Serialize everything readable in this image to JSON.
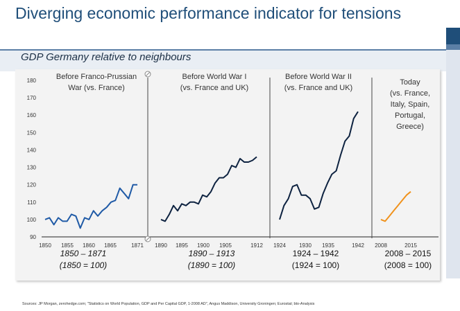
{
  "title": "Diverging economic performance indicator for tensions",
  "subtitle": "GDP Germany relative to neighbours",
  "sources": "Sources: JP Morgan, zerohedge.com; \"Statistics on World Population, GDP and Per Capital GDP, 1-2008 AD\", Angus Maddison, University Groningen; Eurostat; bto-Analysis",
  "colors": {
    "blue": "#1f5aa6",
    "navy": "#0d2240",
    "orange": "#f0921c",
    "title": "#1f4e79"
  },
  "chart_data": {
    "type": "line",
    "ylim": [
      90,
      180
    ],
    "y_ticks": [
      "90",
      "100",
      "110",
      "120",
      "130",
      "140",
      "150",
      "160",
      "170",
      "180"
    ],
    "grid": false,
    "panels": [
      {
        "label": "Before Franco-Prussian War (vs. France)",
        "label_lines": [
          "Before Franco-Prussian",
          "War (vs. France)"
        ],
        "period": "1850 – 1871",
        "base": "(1850 = 100)",
        "x_ticks": [
          "1850",
          "1855",
          "1860",
          "1865",
          "1871"
        ],
        "xlim": [
          1850,
          1871
        ],
        "series": [
          {
            "color": "blue",
            "x": [
              1850,
              1851,
              1852,
              1853,
              1854,
              1855,
              1856,
              1857,
              1858,
              1859,
              1860,
              1861,
              1862,
              1863,
              1864,
              1865,
              1866,
              1867,
              1868,
              1869,
              1870,
              1871
            ],
            "values": [
              100,
              101,
              97,
              101,
              99,
              99,
              103,
              102,
              95,
              101,
              100,
              105,
              102,
              105,
              107,
              110,
              111,
              118,
              115,
              112,
              120,
              120
            ]
          }
        ]
      },
      {
        "label": "Before World War I (vs. France and UK)",
        "label_lines": [
          "Before World War I",
          "(vs. France and UK)"
        ],
        "period": "1890 – 1913",
        "base": "(1890 = 100)",
        "x_ticks": [
          "1890",
          "1895",
          "1900",
          "1905",
          "1912"
        ],
        "xlim": [
          1890,
          1913
        ],
        "series": [
          {
            "color": "navy",
            "x": [
              1890,
              1891,
              1892,
              1893,
              1894,
              1895,
              1896,
              1897,
              1898,
              1899,
              1900,
              1901,
              1902,
              1903,
              1904,
              1905,
              1906,
              1907,
              1908,
              1909,
              1910,
              1911,
              1912,
              1913
            ],
            "values": [
              100,
              99,
              103,
              108,
              105,
              109,
              108,
              110,
              110,
              109,
              114,
              113,
              116,
              121,
              124,
              124,
              126,
              131,
              130,
              135,
              133,
              133,
              134,
              136
            ]
          }
        ]
      },
      {
        "label": "Before World War II (vs. France and UK)",
        "label_lines": [
          "Before World War II",
          "(vs. France and UK)"
        ],
        "period": "1924 – 1942",
        "base": "(1924 = 100)",
        "x_ticks": [
          "1924",
          "1930",
          "1935",
          "1942"
        ],
        "xlim": [
          1924,
          1942
        ],
        "series": [
          {
            "color": "navy",
            "x": [
              1924,
              1925,
              1926,
              1927,
              1928,
              1929,
              1930,
              1931,
              1932,
              1933,
              1934,
              1935,
              1936,
              1937,
              1938,
              1939,
              1940,
              1941,
              1942
            ],
            "values": [
              100,
              108,
              112,
              119,
              120,
              114,
              114,
              112,
              106,
              107,
              115,
              121,
              126,
              128,
              137,
              145,
              148,
              158,
              162
            ]
          }
        ]
      },
      {
        "label": "Today (vs. France, Italy, Spain, Portugal, Greece)",
        "label_lines": [
          "Today",
          "(vs. France,",
          "Italy, Spain,",
          "Portugal,",
          "Greece)"
        ],
        "period": "2008 – 2015",
        "base": "(2008 = 100)",
        "x_ticks": [
          "2008",
          "2015"
        ],
        "xlim": [
          2008,
          2015
        ],
        "series": [
          {
            "color": "orange",
            "x": [
              2008,
              2009,
              2010,
              2011,
              2012,
              2013,
              2014,
              2015
            ],
            "values": [
              100,
              99,
              102,
              105,
              108,
              111,
              114,
              116
            ]
          }
        ]
      }
    ]
  }
}
